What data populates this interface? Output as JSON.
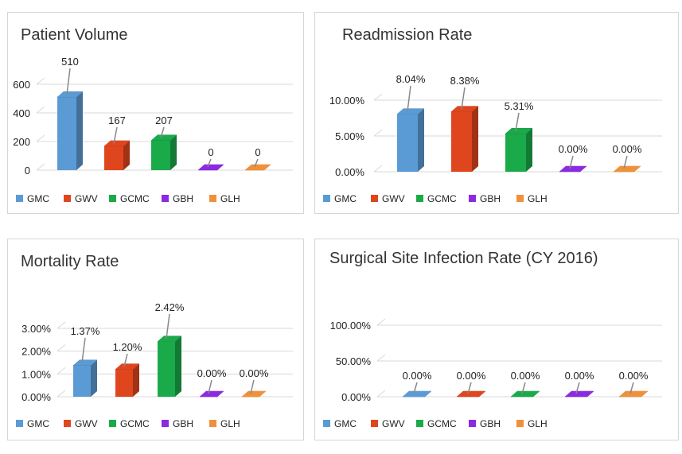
{
  "colors": {
    "GMC": "#5b9bd5",
    "GWV": "#e0461e",
    "GCMC": "#1aaa4a",
    "GBH": "#8a2be2",
    "GLH": "#f0913a",
    "grid": "#d9d9d9",
    "label": "#222222",
    "leader": "#888888"
  },
  "chart_data": [
    {
      "id": "patient-volume",
      "type": "bar",
      "title": "Patient Volume",
      "categories": [
        "GMC",
        "GWV",
        "GCMC",
        "GBH",
        "GLH"
      ],
      "values": [
        510,
        167,
        207,
        0,
        0
      ],
      "value_labels": [
        "510",
        "167",
        "207",
        "0",
        "0"
      ],
      "yticks": [
        "0",
        "200",
        "400",
        "600"
      ],
      "tick_values": [
        0,
        200,
        400,
        600
      ],
      "ylim": [
        0,
        600
      ],
      "legend": [
        "GMC",
        "GWV",
        "GCMC",
        "GBH",
        "GLH"
      ],
      "legend_position": "bottom"
    },
    {
      "id": "readmission-rate",
      "type": "bar",
      "title": "Readmission Rate",
      "categories": [
        "GMC",
        "GWV",
        "GCMC",
        "GBH",
        "GLH"
      ],
      "values": [
        8.04,
        8.38,
        5.31,
        0,
        0
      ],
      "value_labels": [
        "8.04%",
        "8.38%",
        "5.31%",
        "0.00%",
        "0.00%"
      ],
      "yticks": [
        "0.00%",
        "5.00%",
        "10.00%"
      ],
      "tick_values": [
        0,
        5,
        10
      ],
      "ylim": [
        0,
        10
      ],
      "legend": [
        "GMC",
        "GWV",
        "GCMC",
        "GBH",
        "GLH"
      ],
      "legend_position": "bottom"
    },
    {
      "id": "mortality-rate",
      "type": "bar",
      "title": "Mortality Rate",
      "categories": [
        "GMC",
        "GWV",
        "GCMC",
        "GBH",
        "GLH"
      ],
      "values": [
        1.37,
        1.2,
        2.42,
        0,
        0
      ],
      "value_labels": [
        "1.37%",
        "1.20%",
        "2.42%",
        "0.00%",
        "0.00%"
      ],
      "yticks": [
        "0.00%",
        "1.00%",
        "2.00%",
        "3.00%"
      ],
      "tick_values": [
        0,
        1,
        2,
        3
      ],
      "ylim": [
        0,
        3
      ],
      "legend": [
        "GMC",
        "GWV",
        "GCMC",
        "GBH",
        "GLH"
      ],
      "legend_position": "bottom"
    },
    {
      "id": "surgical-site-infection-rate",
      "type": "bar",
      "title": "Surgical Site Infection Rate (CY 2016)",
      "categories": [
        "GMC",
        "GWV",
        "GCMC",
        "GBH",
        "GLH"
      ],
      "values": [
        0,
        0,
        0,
        0,
        0
      ],
      "value_labels": [
        "0.00%",
        "0.00%",
        "0.00%",
        "0.00%",
        "0.00%"
      ],
      "yticks": [
        "0.00%",
        "50.00%",
        "100.00%"
      ],
      "tick_values": [
        0,
        50,
        100
      ],
      "ylim": [
        0,
        100
      ],
      "legend": [
        "GMC",
        "GWV",
        "GCMC",
        "GBH",
        "GLH"
      ],
      "legend_position": "bottom"
    }
  ]
}
